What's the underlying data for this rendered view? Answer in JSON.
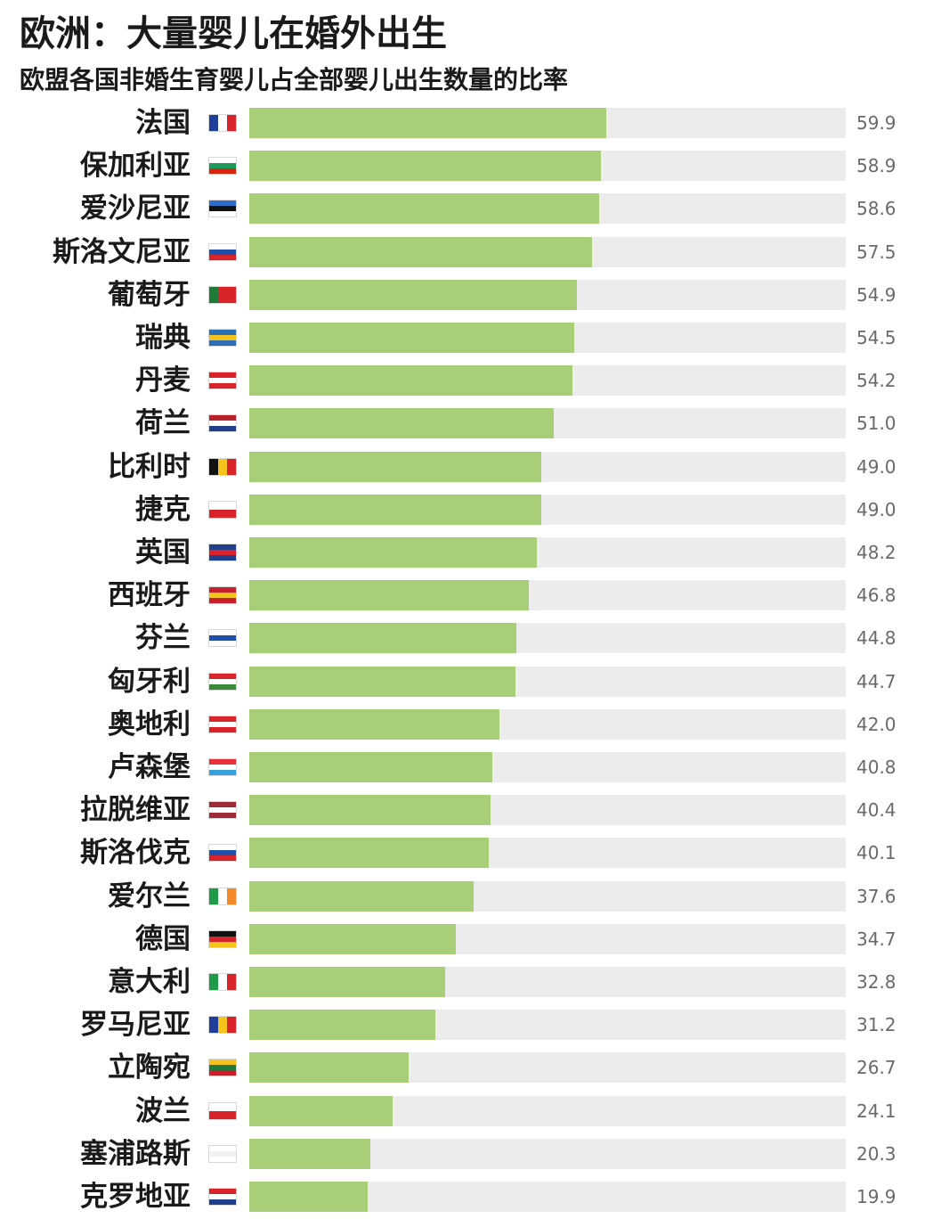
{
  "chart_data": {
    "type": "bar",
    "orientation": "horizontal",
    "title": "欧洲：大量婴儿在婚外出生",
    "subtitle": "欧盟各国非婚生育婴儿占全部婴儿出生数量的比率",
    "xlim": [
      0,
      100
    ],
    "bar_color": "#a8cf78",
    "track_color": "#ececec",
    "categories": [
      "法国",
      "保加利亚",
      "爱沙尼亚",
      "斯洛文尼亚",
      "葡萄牙",
      "瑞典",
      "丹麦",
      "荷兰",
      "比利时",
      "捷克",
      "英国",
      "西班牙",
      "芬兰",
      "匈牙利",
      "奥地利",
      "卢森堡",
      "拉脱维亚",
      "斯洛伐克",
      "爱尔兰",
      "德国",
      "意大利",
      "罗马尼亚",
      "立陶宛",
      "波兰",
      "塞浦路斯",
      "克罗地亚"
    ],
    "values": [
      59.9,
      58.9,
      58.6,
      57.5,
      54.9,
      54.5,
      54.2,
      51.0,
      49.0,
      49.0,
      48.2,
      46.8,
      44.8,
      44.7,
      42.0,
      40.8,
      40.4,
      40.1,
      37.6,
      34.7,
      32.8,
      31.2,
      26.7,
      24.1,
      20.3,
      19.9
    ],
    "value_labels": [
      "59.9",
      "58.9",
      "58.6",
      "57.5",
      "54.9",
      "54.5",
      "54.2",
      "51.0",
      "49.0",
      "49.0",
      "48.2",
      "46.8",
      "44.8",
      "44.7",
      "42.0",
      "40.8",
      "40.4",
      "40.1",
      "37.6",
      "34.7",
      "32.8",
      "31.2",
      "26.7",
      "24.1",
      "20.3",
      "19.9"
    ],
    "flags": [
      {
        "icon": "france-flag-icon",
        "dir": "h",
        "colors": [
          "#1f3f9a",
          "#ffffff",
          "#d8232a"
        ]
      },
      {
        "icon": "bulgaria-flag-icon",
        "dir": "v",
        "colors": [
          "#ffffff",
          "#1a9b5a",
          "#d62612"
        ]
      },
      {
        "icon": "estonia-flag-icon",
        "dir": "v",
        "colors": [
          "#2f6fc9",
          "#111111",
          "#ffffff"
        ]
      },
      {
        "icon": "slovenia-flag-icon",
        "dir": "v",
        "colors": [
          "#ffffff",
          "#1f4fa8",
          "#d8232a"
        ]
      },
      {
        "icon": "portugal-flag-icon",
        "dir": "h",
        "colors": [
          "#1f7a3a",
          "#d8232a",
          "#d8232a"
        ]
      },
      {
        "icon": "sweden-flag-icon",
        "dir": "v",
        "colors": [
          "#2a6fb5",
          "#f4c41c",
          "#2a6fb5"
        ]
      },
      {
        "icon": "denmark-flag-icon",
        "dir": "v",
        "colors": [
          "#d8232a",
          "#ffffff",
          "#d8232a"
        ]
      },
      {
        "icon": "netherlands-flag-icon",
        "dir": "v",
        "colors": [
          "#b8202e",
          "#ffffff",
          "#1f3f8a"
        ]
      },
      {
        "icon": "belgium-flag-icon",
        "dir": "h",
        "colors": [
          "#111111",
          "#f4c41c",
          "#d8232a"
        ]
      },
      {
        "icon": "czech-flag-icon",
        "dir": "v",
        "colors": [
          "#ffffff",
          "#d8232a"
        ]
      },
      {
        "icon": "uk-flag-icon",
        "dir": "v",
        "colors": [
          "#1f3f8a",
          "#d8232a",
          "#1f3f8a"
        ]
      },
      {
        "icon": "spain-flag-icon",
        "dir": "v",
        "colors": [
          "#c8202a",
          "#f4c41c",
          "#c8202a"
        ]
      },
      {
        "icon": "finland-flag-icon",
        "dir": "v",
        "colors": [
          "#ffffff",
          "#1f4fa8",
          "#ffffff"
        ]
      },
      {
        "icon": "hungary-flag-icon",
        "dir": "v",
        "colors": [
          "#d8232a",
          "#ffffff",
          "#3a8a3a"
        ]
      },
      {
        "icon": "austria-flag-icon",
        "dir": "v",
        "colors": [
          "#d8232a",
          "#ffffff",
          "#d8232a"
        ]
      },
      {
        "icon": "luxembourg-flag-icon",
        "dir": "v",
        "colors": [
          "#e8303a",
          "#ffffff",
          "#3aa0dc"
        ]
      },
      {
        "icon": "latvia-flag-icon",
        "dir": "v",
        "colors": [
          "#9e2a36",
          "#ffffff",
          "#9e2a36"
        ]
      },
      {
        "icon": "slovakia-flag-icon",
        "dir": "v",
        "colors": [
          "#ffffff",
          "#1f4fa8",
          "#d8232a"
        ]
      },
      {
        "icon": "ireland-flag-icon",
        "dir": "h",
        "colors": [
          "#1f9a4a",
          "#ffffff",
          "#f28a2a"
        ]
      },
      {
        "icon": "germany-flag-icon",
        "dir": "v",
        "colors": [
          "#111111",
          "#d8232a",
          "#f4c41c"
        ]
      },
      {
        "icon": "italy-flag-icon",
        "dir": "h",
        "colors": [
          "#1f9a4a",
          "#ffffff",
          "#d8232a"
        ]
      },
      {
        "icon": "romania-flag-icon",
        "dir": "h",
        "colors": [
          "#1f3f9a",
          "#f4c41c",
          "#d8232a"
        ]
      },
      {
        "icon": "lithuania-flag-icon",
        "dir": "v",
        "colors": [
          "#f4c41c",
          "#1f7a3a",
          "#c8202a"
        ]
      },
      {
        "icon": "poland-flag-icon",
        "dir": "v",
        "colors": [
          "#ffffff",
          "#d8232a"
        ]
      },
      {
        "icon": "cyprus-flag-icon",
        "dir": "v",
        "colors": [
          "#ffffff",
          "#f2f2f2",
          "#ffffff"
        ]
      },
      {
        "icon": "croatia-flag-icon",
        "dir": "v",
        "colors": [
          "#d8232a",
          "#ffffff",
          "#1f3f8a"
        ]
      }
    ]
  }
}
